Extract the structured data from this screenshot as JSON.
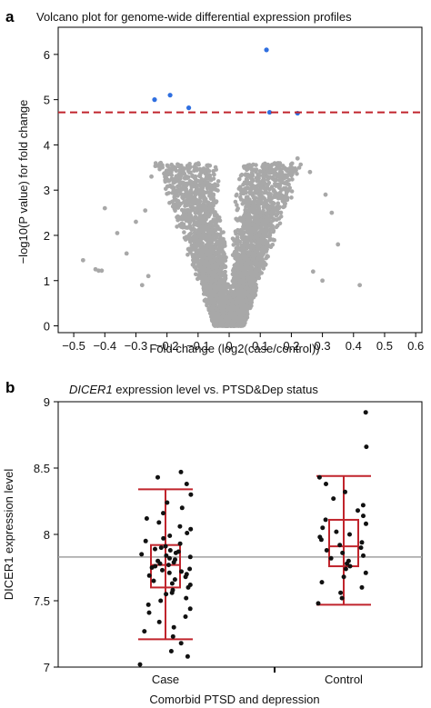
{
  "chart_data": [
    {
      "type": "scatter",
      "panel_label": "a",
      "title": "Volcano plot for genome-wide differential expression profiles",
      "xlabel": "Fold change (log2(case/control))",
      "ylabel": "−log10(P value) for fold change",
      "xlim": [
        -0.55,
        0.62
      ],
      "ylim": [
        -0.15,
        6.6
      ],
      "xticks": [
        -0.5,
        -0.4,
        -0.3,
        -0.2,
        -0.1,
        0,
        0.1,
        0.2,
        0.3,
        0.4,
        0.5,
        0.6
      ],
      "yticks": [
        0,
        1,
        2,
        3,
        4,
        5,
        6
      ],
      "threshold": 4.72,
      "colors": {
        "points": "#a8a8a8",
        "significant": "#2f6fe0",
        "threshold": "#c0242c"
      },
      "series": [
        {
          "name": "",
          "points": [
            {
              "x": -0.47,
              "y": 1.45
            },
            {
              "x": -0.43,
              "y": 1.25
            },
            {
              "x": -0.42,
              "y": 1.22
            },
            {
              "x": -0.41,
              "y": 1.22
            },
            {
              "x": -0.4,
              "y": 2.6
            },
            {
              "x": -0.36,
              "y": 2.05
            },
            {
              "x": -0.3,
              "y": 2.3
            },
            {
              "x": -0.27,
              "y": 2.55
            },
            {
              "x": -0.33,
              "y": 1.6
            },
            {
              "x": 0.42,
              "y": 0.9
            },
            {
              "x": 0.33,
              "y": 2.5
            },
            {
              "x": 0.31,
              "y": 2.9
            },
            {
              "x": 0.35,
              "y": 1.8
            },
            {
              "x": -0.25,
              "y": 3.3
            },
            {
              "x": 0.26,
              "y": 3.4
            },
            {
              "x": -0.22,
              "y": 3.6
            },
            {
              "x": 0.22,
              "y": 3.7
            },
            {
              "x": -0.08,
              "y": 3.4
            },
            {
              "x": 0.08,
              "y": 3.45
            },
            {
              "x": -0.26,
              "y": 1.1
            },
            {
              "x": 0.27,
              "y": 1.2
            },
            {
              "x": 0.3,
              "y": 1.0
            },
            {
              "x": -0.28,
              "y": 0.9
            }
          ]
        },
        {
          "name": "",
          "points": [
            {
              "x": -0.24,
              "y": 5.0
            },
            {
              "x": -0.19,
              "y": 5.1
            },
            {
              "x": -0.13,
              "y": 4.82
            },
            {
              "x": 0.12,
              "y": 6.1
            },
            {
              "x": 0.13,
              "y": 4.72
            },
            {
              "x": 0.22,
              "y": 4.7
            }
          ]
        }
      ]
    },
    {
      "type": "box",
      "panel_label": "b",
      "title_italic": "DICER1",
      "title_rest": " expression level vs. PTSD&Dep status",
      "xlabel": "Comorbid PTSD and depression",
      "ylabel": "DICER1 expression level",
      "categories": [
        "Case",
        "Control"
      ],
      "ylim": [
        7.0,
        9.0
      ],
      "yticks": [
        7,
        7.5,
        8,
        8.5,
        9
      ],
      "overall_mean": 7.83,
      "colors": {
        "box": "#c0242c",
        "points": "#111111",
        "mean_line": "#a0a0a0"
      },
      "boxes": [
        {
          "name": "Case",
          "whisker_low": 7.21,
          "q1": 7.6,
          "median": 7.77,
          "q3": 7.92,
          "whisker_high": 8.34
        },
        {
          "name": "Control",
          "whisker_low": 7.47,
          "q1": 7.76,
          "median": 7.91,
          "q3": 8.11,
          "whisker_high": 8.44
        }
      ],
      "case_points": [
        7.02,
        7.08,
        7.12,
        7.18,
        7.23,
        7.27,
        7.3,
        7.34,
        7.38,
        7.41,
        7.44,
        7.47,
        7.5,
        7.52,
        7.55,
        7.56,
        7.58,
        7.6,
        7.62,
        7.63,
        7.65,
        7.66,
        7.68,
        7.69,
        7.7,
        7.71,
        7.72,
        7.73,
        7.74,
        7.75,
        7.76,
        7.77,
        7.78,
        7.79,
        7.8,
        7.81,
        7.82,
        7.83,
        7.84,
        7.85,
        7.86,
        7.87,
        7.88,
        7.89,
        7.9,
        7.91,
        7.93,
        7.95,
        7.97,
        7.99,
        8.01,
        8.04,
        8.06,
        8.09,
        8.12,
        8.16,
        8.2,
        8.24,
        8.3,
        8.38,
        8.43,
        8.47
      ],
      "control_points": [
        7.48,
        7.52,
        7.56,
        7.6,
        7.64,
        7.68,
        7.71,
        7.74,
        7.76,
        7.78,
        7.8,
        7.82,
        7.84,
        7.86,
        7.88,
        7.9,
        7.92,
        7.94,
        7.96,
        7.98,
        8.0,
        8.02,
        8.05,
        8.08,
        8.11,
        8.14,
        8.18,
        8.22,
        8.27,
        8.32,
        8.38,
        8.43,
        8.66,
        8.92
      ]
    }
  ]
}
